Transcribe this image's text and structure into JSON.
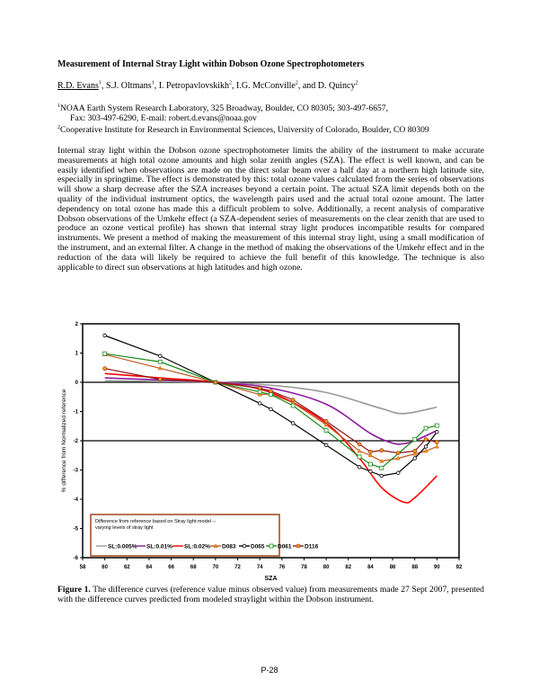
{
  "title": "Measurement of Internal Stray Light within Dobson Ozone Spectrophotometers",
  "authors": [
    {
      "name": "R.D. Evans",
      "sup": "1",
      "sep": ", "
    },
    {
      "name": "S.J. Oltmans",
      "sup": "1",
      "sep": ", "
    },
    {
      "name": "I. Petropavlovskikh",
      "sup": "2",
      "sep": ", "
    },
    {
      "name": "I.G. McConville",
      "sup": "2",
      "sep": ", and "
    },
    {
      "name": "D. Quincy",
      "sup": "2",
      "sep": ""
    }
  ],
  "affiliations": {
    "a1_sup": "1",
    "a1_line1": "NOAA Earth System Research Laboratory, 325 Broadway, Boulder, CO 80305; 303-497-6657,",
    "a1_line2": "Fax: 303-497-6290, E-mail: robert.d.evans@noaa.gov",
    "a2_sup": "2",
    "a2_line1": "Cooperative Institute for Research in Environmental Sciences, University of Colorado, Boulder, CO 80309"
  },
  "abstract": "Internal stray light within the Dobson ozone spectrophotometer limits the ability of the instrument to make accurate measurements at high total ozone amounts and high solar zenith angles (SZA).  The effect is well known, and can be easily identified when observations are made on the direct solar beam over a half day at a northern high latitude site, especially in springtime.  The effect is demonstrated by this: total ozone values calculated from the series of observations will show a sharp decrease after the SZA increases beyond a certain point.  The actual SZA limit depends both on the quality of the individual instrument optics, the wavelength pairs used and the actual total ozone amount.  The latter dependency on total ozone has made this a difficult problem to solve.  Additionally, a recent analysis of comparative Dobson observations of the Umkehr effect (a SZA-dependent series of measurements on the clear zenith that are used to produce an ozone vertical profile) has shown that internal stray light produces incompatible results for compared instruments.  We present a method of making the measurement of this internal stray light, using a small modification of the instrument, and an external filter.  A change in the method of making the observations of the Umkehr effect and in the reduction of the data will likely be required to achieve the full benefit of this knowledge.  The technique is also applicable to direct sun observations at high latitudes and high ozone.",
  "caption": {
    "label": "Figure 1.",
    "text": " The difference curves (reference value minus observed value) from measurements made 27 Sept 2007, presented with the difference curves predicted from modeled straylight within the Dobson instrument."
  },
  "page_number": "P-28",
  "chart_data": {
    "type": "line",
    "xlabel": "SZA",
    "ylabel": "% difference from Normalized reference",
    "xlim": [
      58,
      92
    ],
    "ylim": [
      -6,
      2
    ],
    "xticks": [
      "58",
      "60",
      "62",
      "64",
      "66",
      "68",
      "70",
      "72",
      "74",
      "76",
      "78",
      "80",
      "82",
      "84",
      "86",
      "88",
      "90",
      "92"
    ],
    "yticks": [
      "2",
      "1",
      "0",
      "-1",
      "-2",
      "-3",
      "-4",
      "-5",
      "-6"
    ],
    "hlines": [
      0,
      -2
    ],
    "legend_title": "Difference from reference based on Stray light model -- varying levels of stray light",
    "legend_position": "bottom-left",
    "series": [
      {
        "name": "SL:0.005%",
        "color": "#999999",
        "marker": "none",
        "x": [
          60,
          65,
          70,
          75,
          80,
          85,
          87,
          90
        ],
        "y": [
          0.05,
          0.03,
          0,
          -0.1,
          -0.35,
          -0.9,
          -1.07,
          -0.85
        ]
      },
      {
        "name": "SL:0.01%",
        "color": "#8b1a9b",
        "marker": "none",
        "x": [
          60,
          65,
          70,
          75,
          80,
          84,
          86,
          87,
          88,
          90
        ],
        "y": [
          0.15,
          0.08,
          0,
          -0.2,
          -0.75,
          -1.75,
          -2.08,
          -2.1,
          -2.0,
          -1.65
        ]
      },
      {
        "name": "SL:0.02%",
        "color": "#ff0000",
        "marker": "none",
        "x": [
          60,
          65,
          70,
          75,
          80,
          83,
          85,
          87,
          88,
          90
        ],
        "y": [
          0.3,
          0.15,
          0,
          -0.35,
          -1.4,
          -2.6,
          -3.6,
          -4.1,
          -3.95,
          -3.2
        ]
      },
      {
        "name": "D083",
        "color": "#c0561e",
        "marker": "triangle",
        "x": [
          60,
          65,
          70,
          74,
          75,
          77,
          80,
          83,
          84,
          85,
          86.5,
          88,
          89,
          90
        ],
        "y": [
          0.95,
          0.48,
          0,
          -0.42,
          -0.4,
          -0.7,
          -1.45,
          -2.35,
          -2.5,
          -2.7,
          -2.6,
          -2.45,
          -2.35,
          -2.2
        ]
      },
      {
        "name": "D065",
        "color": "#000000",
        "marker": "circle-open",
        "x": [
          60,
          65,
          70,
          74,
          75,
          77,
          80,
          83,
          84,
          85,
          86.5,
          88,
          89,
          90
        ],
        "y": [
          1.6,
          0.9,
          0,
          -0.72,
          -0.92,
          -1.4,
          -2.15,
          -2.9,
          -3.05,
          -3.2,
          -3.1,
          -2.6,
          -2.2,
          -1.7
        ]
      },
      {
        "name": "D061",
        "color": "#1a8a1a",
        "marker": "square-open",
        "x": [
          60,
          65,
          70,
          74,
          75,
          77,
          80,
          83,
          84,
          85,
          88,
          89,
          90
        ],
        "y": [
          0.98,
          0.7,
          0,
          -0.33,
          -0.42,
          -0.8,
          -1.65,
          -2.55,
          -2.8,
          -2.93,
          -1.95,
          -1.57,
          -1.48
        ]
      },
      {
        "name": "D116",
        "color": "#8b1a1a",
        "marker": "circle-orange",
        "x": [
          60,
          65,
          70,
          74,
          75,
          77,
          80,
          83,
          84,
          85,
          86.5,
          88,
          89,
          90
        ],
        "y": [
          0.47,
          0.1,
          0,
          -0.2,
          -0.3,
          -0.6,
          -1.33,
          -2.12,
          -2.38,
          -2.33,
          -2.42,
          -2.35,
          -1.95,
          -2.05
        ]
      }
    ]
  }
}
